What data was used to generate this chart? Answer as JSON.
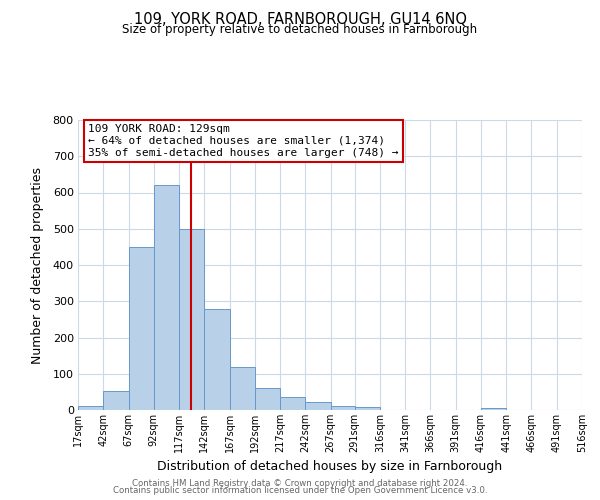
{
  "title": "109, YORK ROAD, FARNBOROUGH, GU14 6NQ",
  "subtitle": "Size of property relative to detached houses in Farnborough",
  "xlabel": "Distribution of detached houses by size in Farnborough",
  "ylabel": "Number of detached properties",
  "footer_line1": "Contains HM Land Registry data © Crown copyright and database right 2024.",
  "footer_line2": "Contains public sector information licensed under the Open Government Licence v3.0.",
  "bin_edges": [
    17,
    42,
    67,
    92,
    117,
    142,
    167,
    192,
    217,
    242,
    267,
    291,
    316,
    341,
    366,
    391,
    416,
    441,
    466,
    491,
    516
  ],
  "bin_heights": [
    10,
    52,
    450,
    620,
    500,
    280,
    118,
    60,
    37,
    22,
    10,
    8,
    0,
    0,
    0,
    0,
    5,
    0,
    0,
    0
  ],
  "bar_color": "#b8d0e8",
  "bar_edgecolor": "#6699cc",
  "vline_x": 129,
  "vline_color": "#cc0000",
  "annotation_title": "109 YORK ROAD: 129sqm",
  "annotation_line1": "← 64% of detached houses are smaller (1,374)",
  "annotation_line2": "35% of semi-detached houses are larger (748) →",
  "annotation_box_edgecolor": "#cc0000",
  "ylim": [
    0,
    800
  ],
  "yticks": [
    0,
    100,
    200,
    300,
    400,
    500,
    600,
    700,
    800
  ],
  "tick_labels": [
    "17sqm",
    "42sqm",
    "67sqm",
    "92sqm",
    "117sqm",
    "142sqm",
    "167sqm",
    "192sqm",
    "217sqm",
    "242sqm",
    "267sqm",
    "291sqm",
    "316sqm",
    "341sqm",
    "366sqm",
    "391sqm",
    "416sqm",
    "441sqm",
    "466sqm",
    "491sqm",
    "516sqm"
  ],
  "background_color": "#ffffff",
  "grid_color": "#ccd9e8"
}
